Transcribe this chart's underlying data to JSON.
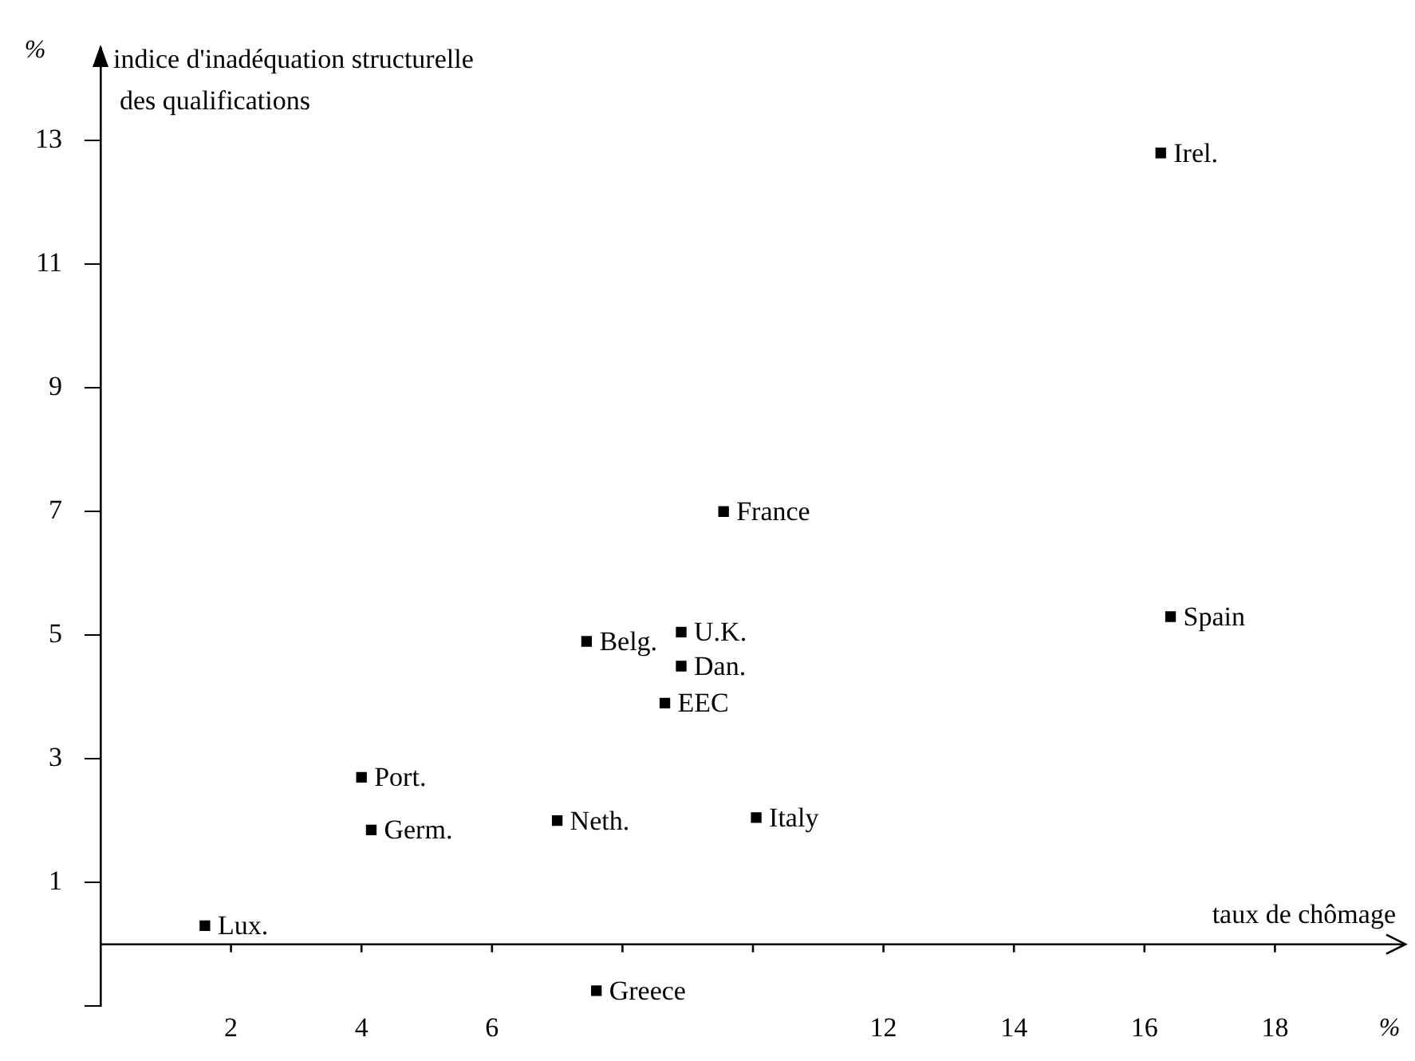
{
  "chart_data": {
    "type": "scatter",
    "xlabel": "taux de chômage",
    "ylabel": "indice d'inadéquation structurelle des qualifications",
    "x": [
      1.6,
      4.0,
      4.15,
      7.0,
      7.45,
      7.6,
      8.9,
      8.9,
      8.65,
      9.55,
      10.05,
      16.4,
      16.25
    ],
    "series": [
      {
        "color": "#000000",
        "values": [
          0.3,
          2.7,
          1.85,
          2.0,
          4.9,
          -0.75,
          5.05,
          4.5,
          3.9,
          7.0,
          2.05,
          5.3,
          12.8
        ]
      }
    ],
    "marker": "square",
    "grid": false,
    "legend": false,
    "xlim": [
      0,
      20
    ],
    "ylim": [
      -1,
      14.5
    ],
    "xticks": [
      2,
      4,
      6,
      {
        "value": 8,
        "label": null
      },
      {
        "value": 10,
        "label": null
      },
      12,
      14,
      16,
      18
    ],
    "yticks": [
      {
        "value": -1,
        "label": null
      },
      1,
      3,
      5,
      7,
      9,
      11,
      13
    ],
    "annotations": [
      {
        "text": "Lux.",
        "x": 1.6,
        "y": 0.3
      },
      {
        "text": "Port.",
        "x": 4.0,
        "y": 2.7
      },
      {
        "text": "Germ.",
        "x": 4.15,
        "y": 1.85
      },
      {
        "text": "Neth.",
        "x": 7.0,
        "y": 2.0
      },
      {
        "text": "Belg.",
        "x": 7.45,
        "y": 4.9
      },
      {
        "text": "Greece",
        "x": 7.6,
        "y": -0.75
      },
      {
        "text": "U.K.",
        "x": 8.9,
        "y": 5.05
      },
      {
        "text": "Dan.",
        "x": 8.9,
        "y": 4.5
      },
      {
        "text": "EEC",
        "x": 8.65,
        "y": 3.9
      },
      {
        "text": "France",
        "x": 9.55,
        "y": 7.0
      },
      {
        "text": "Italy",
        "x": 10.05,
        "y": 2.05
      },
      {
        "text": "Spain",
        "x": 16.4,
        "y": 5.3
      },
      {
        "text": "Irel.",
        "x": 16.25,
        "y": 12.8
      },
      "%",
      "%"
    ]
  }
}
